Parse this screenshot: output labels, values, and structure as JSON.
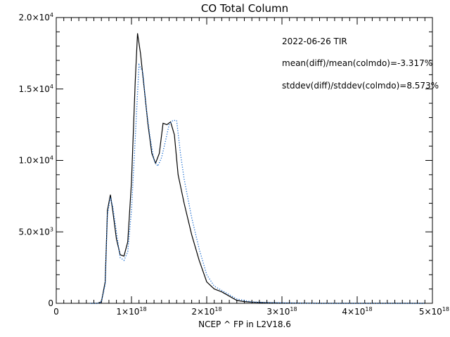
{
  "chart_data": {
    "type": "line",
    "title": "CO Total Column",
    "xlabel": "NCEP ^ FP in L2V18.6",
    "ylabel": "",
    "xlim": [
      0,
      5e+18
    ],
    "ylim": [
      0,
      20000
    ],
    "x_ticks": [
      {
        "value": 0,
        "mant": "0",
        "exp": ""
      },
      {
        "value": 1e+18,
        "mant": "1×10",
        "exp": "18"
      },
      {
        "value": 2e+18,
        "mant": "2×10",
        "exp": "18"
      },
      {
        "value": 3e+18,
        "mant": "3×10",
        "exp": "18"
      },
      {
        "value": 4e+18,
        "mant": "4×10",
        "exp": "18"
      },
      {
        "value": 5e+18,
        "mant": "5×10",
        "exp": "18"
      }
    ],
    "y_ticks": [
      {
        "value": 0,
        "mant": "0",
        "exp": ""
      },
      {
        "value": 5000,
        "mant": "5.0×10",
        "exp": "3"
      },
      {
        "value": 10000,
        "mant": "1.0×10",
        "exp": "4"
      },
      {
        "value": 15000,
        "mant": "1.5×10",
        "exp": "4"
      },
      {
        "value": 20000,
        "mant": "2.0×10",
        "exp": "4"
      }
    ],
    "annotations": [
      "2022-06-26 TIR",
      "mean(diff)/mean(colmdo)=-3.317%",
      "stddev(diff)/stddev(colmdo)=8.573%"
    ],
    "grid": false,
    "series": [
      {
        "style": "solid",
        "color": "#000000",
        "x": [
          4.5e+17,
          5.5e+17,
          6e+17,
          6.5e+17,
          6.8e+17,
          7.2e+17,
          7.5e+17,
          8e+17,
          8.5e+17,
          9e+17,
          9.5e+17,
          1e+18,
          1.05e+18,
          1.08e+18,
          1.12e+18,
          1.17e+18,
          1.22e+18,
          1.27e+18,
          1.32e+18,
          1.37e+18,
          1.42e+18,
          1.47e+18,
          1.52e+18,
          1.57e+18,
          1.62e+18,
          1.7e+18,
          1.8e+18,
          1.9e+18,
          2e+18,
          2.1e+18,
          2.2e+18,
          2.3e+18,
          2.4e+18,
          2.5e+18,
          2.6e+18,
          2.8e+18,
          3e+18,
          3.5e+18,
          4e+18,
          4.5e+18,
          4.9e+18
        ],
        "y": [
          0,
          0,
          100,
          1500,
          6500,
          7600,
          6500,
          4500,
          3400,
          3300,
          4300,
          8500,
          15500,
          18900,
          17500,
          15000,
          12500,
          10500,
          9800,
          10500,
          12600,
          12500,
          12700,
          11800,
          9000,
          7000,
          4800,
          3000,
          1500,
          1000,
          800,
          500,
          200,
          120,
          80,
          40,
          20,
          0,
          0,
          0,
          0
        ]
      },
      {
        "style": "dotted",
        "color": "#1f6fd1",
        "x": [
          4.5e+17,
          5.5e+17,
          6e+17,
          6.5e+17,
          6.8e+17,
          7.2e+17,
          7.5e+17,
          8e+17,
          8.5e+17,
          9e+17,
          9.5e+17,
          1e+18,
          1.05e+18,
          1.1e+18,
          1.15e+18,
          1.2e+18,
          1.25e+18,
          1.3e+18,
          1.35e+18,
          1.4e+18,
          1.45e+18,
          1.5e+18,
          1.55e+18,
          1.6e+18,
          1.65e+18,
          1.7e+18,
          1.8e+18,
          1.9e+18,
          2e+18,
          2.1e+18,
          2.2e+18,
          2.3e+18,
          2.4e+18,
          2.5e+18,
          2.6e+18,
          2.8e+18,
          3e+18,
          3.5e+18,
          4e+18,
          4.5e+18,
          4.9e+18
        ],
        "y": [
          0,
          0,
          100,
          1300,
          6200,
          7400,
          6800,
          5000,
          3200,
          3000,
          3600,
          6500,
          11500,
          16700,
          16200,
          13500,
          11500,
          10000,
          9600,
          10200,
          11300,
          12500,
          12800,
          12800,
          10500,
          8700,
          6000,
          3800,
          2000,
          1200,
          900,
          600,
          300,
          200,
          100,
          50,
          30,
          0,
          0,
          0,
          0
        ]
      }
    ]
  }
}
